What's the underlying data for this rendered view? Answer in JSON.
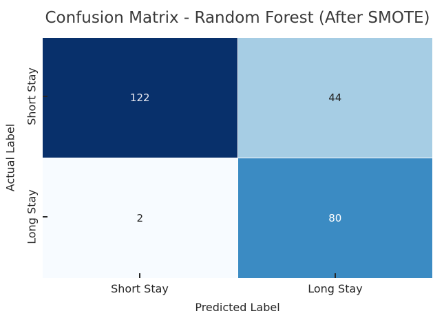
{
  "chart_data": {
    "type": "heatmap",
    "title": "Confusion Matrix - Random Forest (After SMOTE)",
    "xlabel": "Predicted Label",
    "ylabel": "Actual Label",
    "x_categories": [
      "Short Stay",
      "Long Stay"
    ],
    "y_categories": [
      "Short Stay",
      "Long Stay"
    ],
    "values": [
      [
        122,
        44
      ],
      [
        2,
        80
      ]
    ],
    "colormap": "Blues",
    "vmin": 2,
    "vmax": 122,
    "colorbar": false,
    "grid": false,
    "legend_position": "none",
    "cell_colors": [
      [
        "#08306b",
        "#a6cde4"
      ],
      [
        "#f7fbff",
        "#3b8bc3"
      ]
    ],
    "cell_text_colors": [
      [
        "#eaeaf2",
        "#262626"
      ],
      [
        "#262626",
        "#ffffff"
      ]
    ]
  },
  "colors": {
    "background": "#ffffff",
    "title_text": "#3a3a3a",
    "axis_text": "#262626",
    "tick_mark": "#262626"
  }
}
